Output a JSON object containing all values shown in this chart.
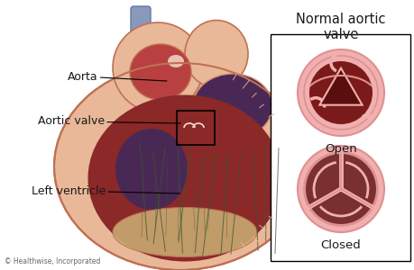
{
  "bg_color": "#ffffff",
  "title": "Normal aortic\nvalve",
  "title_fontsize": 10.5,
  "label_aorta": "Aorta",
  "label_aortic_valve": "Aortic valve",
  "label_left_ventricle": "Left ventricle",
  "label_open": "Open",
  "label_closed": "Closed",
  "label_copyright": "© Healthwise, Incorporated",
  "skin_light": "#e8b898",
  "skin_mid": "#d4906a",
  "skin_dark": "#c07055",
  "dark_red": "#8b3030",
  "dark_red2": "#7a2525",
  "dark_purple": "#4a2855",
  "muscle_red": "#8b2828",
  "muscle_dark": "#6a1818",
  "aorta_cavity": "#b84040",
  "valve_ring_light": "#f0b0b0",
  "valve_ring_mid": "#e09090",
  "valve_ring_dark": "#c87070",
  "valve_open_bg": "#7a1a1a",
  "valve_open_triangle": "#5a0e0e",
  "valve_closed_bg": "#9a5050",
  "valve_closed_cusp": "#7a3030",
  "valve_divider": "#f0b0b0",
  "blue_vessel": "#8899bb",
  "blue_vessel_edge": "#6677aa",
  "tan_tissue": "#c8a870",
  "green_lines": "#3a5530",
  "text_color": "#1a1a1a",
  "box_color": "#000000",
  "annotation_lw": 0.8
}
